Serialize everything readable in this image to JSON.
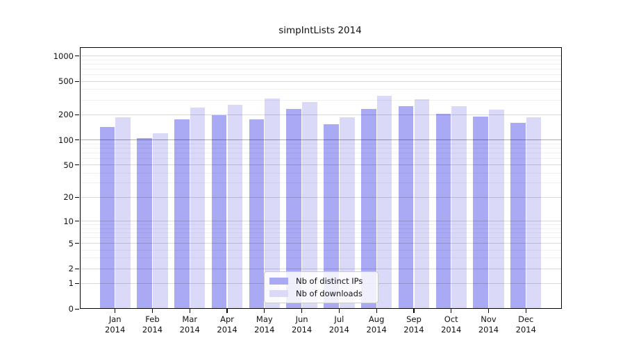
{
  "title": "simpIntLists 2014",
  "colors": {
    "distinct_ips": "#a9a9f4",
    "downloads": "#dadaf8",
    "grid_minor": "rgba(0,0,0,0.055)",
    "grid_major": "rgba(0,0,0,0.15)",
    "grid_hundred": "rgba(0,0,0,0.33)",
    "axis": "#000000"
  },
  "legend": {
    "items": [
      {
        "label": "Nb of distinct IPs",
        "series_key": "distinct_ips"
      },
      {
        "label": "Nb of downloads",
        "series_key": "downloads"
      }
    ],
    "position": "lower center"
  },
  "chart_data": {
    "type": "bar",
    "title": "simpIntLists 2014",
    "y_scale": "log1p",
    "grid": true,
    "ylim": [
      0,
      1270
    ],
    "y_ticks": [
      0,
      1,
      2,
      5,
      10,
      20,
      50,
      100,
      200,
      500,
      1000
    ],
    "y_minor_ticks": [
      3,
      4,
      6,
      7,
      8,
      9,
      30,
      40,
      60,
      70,
      80,
      90,
      300,
      400,
      600,
      700,
      800,
      900
    ],
    "emphasized_gridline": 100,
    "months": [
      "Jan",
      "Feb",
      "Mar",
      "Apr",
      "May",
      "Jun",
      "Jul",
      "Aug",
      "Sep",
      "Oct",
      "Nov",
      "Dec"
    ],
    "year": "2014",
    "series": [
      {
        "name": "Nb of distinct IPs",
        "values": [
          144,
          106,
          175,
          198,
          176,
          234,
          155,
          235,
          253,
          206,
          190,
          159
        ]
      },
      {
        "name": "Nb of downloads",
        "values": [
          187,
          121,
          245,
          265,
          312,
          282,
          188,
          339,
          308,
          251,
          232,
          187
        ]
      }
    ]
  }
}
